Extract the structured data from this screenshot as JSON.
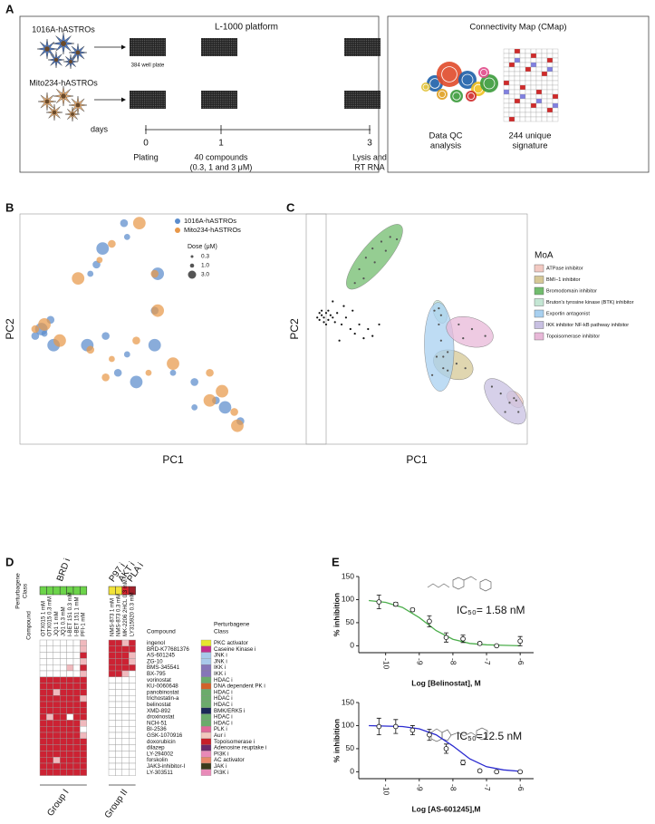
{
  "panel_letters": [
    "A",
    "B",
    "C",
    "D",
    "E"
  ],
  "panel_a": {
    "platform_title": "L-1000 platform",
    "cell_lines": [
      "1016A-hASTROs",
      "Mito234-hASTROs"
    ],
    "plate_label": "384 well plate",
    "days_label": "days",
    "timeline": [
      {
        "day": "0",
        "lines": [
          "Plating"
        ]
      },
      {
        "day": "1",
        "lines": [
          "40 compounds",
          "(0.3, 1 and 3 μM)"
        ]
      },
      {
        "day": "3",
        "lines": [
          "Lysis and",
          "RT RNA"
        ]
      }
    ],
    "cmap_title": "Connectivity Map (CMap)",
    "cmap_steps": [
      [
        "Data QC",
        "analysis"
      ],
      [
        "244 unique",
        "signature"
      ]
    ]
  },
  "panel_d": {
    "class_axis_label": [
      "Perturbagene",
      "Class"
    ],
    "compound_axis_label": "Compound",
    "compound_header": "Compound",
    "class_header": [
      "Perturbagene",
      "Class"
    ],
    "level_colors": [
      "#ffffff",
      "#f0b9bd",
      "#cc2233"
    ],
    "groups": [
      {
        "name": "Group I",
        "class_labels": [
          "BRD i"
        ],
        "columns": [
          {
            "name": "OTX015 1 mM",
            "color": "#6cd44a"
          },
          {
            "name": "OTX015 0.3 mM",
            "color": "#6cd44a"
          },
          {
            "name": "JQ1 1 mM",
            "color": "#6cd44a"
          },
          {
            "name": "JQ1 0.3 mM",
            "color": "#6cd44a"
          },
          {
            "name": "I-BET 151 0.3 mM",
            "color": "#6cd44a"
          },
          {
            "name": "I-BET 151 1 mM",
            "color": "#6cd44a"
          },
          {
            "name": "PFI-1 mM",
            "color": "#6cd44a"
          }
        ],
        "cells": [
          [
            0,
            0,
            0,
            0,
            0,
            0,
            1
          ],
          [
            0,
            0,
            0,
            0,
            0,
            0,
            1
          ],
          [
            0,
            0,
            0,
            0,
            0,
            0,
            2
          ],
          [
            0,
            0,
            0,
            0,
            0,
            0,
            1
          ],
          [
            0,
            0,
            0,
            0,
            1,
            0,
            2
          ],
          [
            0,
            0,
            0,
            0,
            0,
            0,
            1
          ],
          [
            2,
            2,
            2,
            2,
            2,
            2,
            2
          ],
          [
            2,
            2,
            2,
            2,
            2,
            2,
            2
          ],
          [
            2,
            2,
            1,
            2,
            2,
            2,
            2
          ],
          [
            2,
            2,
            2,
            2,
            2,
            2,
            1
          ],
          [
            2,
            2,
            2,
            2,
            2,
            2,
            2
          ],
          [
            2,
            2,
            2,
            2,
            2,
            2,
            2
          ],
          [
            2,
            1,
            2,
            2,
            0,
            2,
            2
          ],
          [
            2,
            2,
            2,
            2,
            2,
            2,
            1
          ],
          [
            2,
            2,
            2,
            2,
            2,
            2,
            0
          ],
          [
            2,
            2,
            2,
            2,
            2,
            2,
            1
          ],
          [
            2,
            2,
            2,
            2,
            2,
            2,
            2
          ],
          [
            2,
            2,
            2,
            2,
            2,
            2,
            2
          ],
          [
            2,
            2,
            2,
            2,
            2,
            2,
            2
          ],
          [
            2,
            2,
            1,
            2,
            2,
            2,
            2
          ],
          [
            2,
            2,
            2,
            2,
            2,
            2,
            2
          ],
          [
            2,
            2,
            2,
            2,
            2,
            2,
            2
          ]
        ]
      },
      {
        "name": "Group II",
        "class_labels": [
          "P97 i",
          "AKT i",
          "PLA i"
        ],
        "columns": [
          {
            "name": "NMS-873 1 mM",
            "color": "#f2e33a"
          },
          {
            "name": "NMS-873 0.3 mM",
            "color": "#f2e33a"
          },
          {
            "name": "MK-2206 2HCL 0.3 mM",
            "color": "#d9262e"
          },
          {
            "name": "LY315920 0.3 mM",
            "color": "#a0202a"
          }
        ],
        "cells": [
          [
            2,
            2,
            1,
            2
          ],
          [
            2,
            2,
            2,
            2
          ],
          [
            2,
            2,
            2,
            1
          ],
          [
            2,
            2,
            2,
            1
          ],
          [
            2,
            2,
            2,
            2
          ],
          [
            2,
            2,
            1,
            0
          ],
          [
            0,
            0,
            0,
            0
          ],
          [
            0,
            0,
            0,
            0
          ],
          [
            0,
            0,
            0,
            0
          ],
          [
            0,
            0,
            0,
            0
          ],
          [
            0,
            0,
            0,
            0
          ],
          [
            0,
            0,
            0,
            0
          ],
          [
            0,
            0,
            0,
            0
          ],
          [
            0,
            0,
            0,
            0
          ],
          [
            0,
            0,
            0,
            0
          ],
          [
            0,
            0,
            0,
            0
          ],
          [
            0,
            0,
            0,
            0
          ],
          [
            0,
            0,
            0,
            0
          ],
          [
            0,
            0,
            0,
            0
          ],
          [
            0,
            0,
            0,
            0
          ],
          [
            0,
            0,
            0,
            0
          ],
          [
            0,
            0,
            0,
            0
          ]
        ]
      }
    ],
    "rows": [
      {
        "compound": "ingenol",
        "class": "PKC activator",
        "color": "#e6e62e"
      },
      {
        "compound": "BRD-K77681376",
        "class": "Caseine Kinase i",
        "color": "#c2308c"
      },
      {
        "compound": "AS-601245",
        "class": "JNK i",
        "color": "#a9c9ea"
      },
      {
        "compound": "ZG-10",
        "class": "JNK i",
        "color": "#a9c9ea"
      },
      {
        "compound": "BMS-345541",
        "class": "IKK i",
        "color": "#8676b8"
      },
      {
        "compound": "BX-795",
        "class": "IKK i",
        "color": "#8676b8"
      },
      {
        "compound": "vorinostat",
        "class": "HDAC i",
        "color": "#6bab6b"
      },
      {
        "compound": "KU-0060648",
        "class": "DNA dependent PK i",
        "color": "#d2622a"
      },
      {
        "compound": "panobinostat",
        "class": "HDAC i",
        "color": "#6bab6b"
      },
      {
        "compound": "trichostatin-a",
        "class": "HDAC i",
        "color": "#6bab6b"
      },
      {
        "compound": "belinostat",
        "class": "HDAC i",
        "color": "#6bab6b"
      },
      {
        "compound": "XMD-892",
        "class": "BMK/ERK5 i",
        "color": "#1c2858"
      },
      {
        "compound": "droxinostat",
        "class": "HDAC i",
        "color": "#6bab6b"
      },
      {
        "compound": "NCH-51",
        "class": "HDAC i",
        "color": "#6bab6b"
      },
      {
        "compound": "BI-2536",
        "class": "PLK i",
        "color": "#df6898"
      },
      {
        "compound": "GSK-1070916",
        "class": "Aur i",
        "color": "#f2c8bf"
      },
      {
        "compound": "doxorubicin",
        "class": "Topoisomerase i",
        "color": "#c61f2a"
      },
      {
        "compound": "dilazep",
        "class": "Adenosine reuptake i",
        "color": "#6a2a6a"
      },
      {
        "compound": "LY-294002",
        "class": "PI3K i",
        "color": "#e88ab8"
      },
      {
        "compound": "forskolin",
        "class": "AC activator",
        "color": "#e8886a"
      },
      {
        "compound": "JAK3-inhibitor-I",
        "class": "JAK i",
        "color": "#3a3a1c"
      },
      {
        "compound": "LY-303511",
        "class": "PI3K i",
        "color": "#e88ab8"
      }
    ]
  },
  "chart_data": [
    {
      "type": "scatter",
      "xlabel": "PC1",
      "ylabel": "PC2",
      "xlim": [
        0,
        100
      ],
      "ylim": [
        0,
        100
      ],
      "legend_loc": "upper right",
      "series": [
        {
          "name": "1016A-hASTROs",
          "color": "#5b8ccc",
          "x": [
            34,
            35,
            27,
            25,
            23,
            45,
            44,
            7,
            10,
            8,
            11,
            5,
            22,
            28,
            35,
            44,
            32,
            38,
            50,
            57,
            67,
            64,
            57,
            72
          ],
          "y": [
            96,
            90,
            85,
            78,
            74,
            74,
            58,
            50,
            54,
            48,
            43,
            47,
            43,
            47,
            39,
            43,
            31,
            27,
            31,
            27,
            16,
            19,
            16,
            10
          ],
          "dose": [
            1,
            0.3,
            3,
            1,
            0.3,
            3,
            1,
            3,
            1,
            0.3,
            3,
            1,
            3,
            1,
            0.3,
            3,
            1,
            3,
            0.3,
            1,
            3,
            1,
            0.3,
            1
          ]
        },
        {
          "name": "Mito234-hASTROs",
          "color": "#e8984a",
          "x": [
            39,
            30,
            26,
            19,
            44,
            45,
            8,
            5,
            13,
            23,
            30,
            38,
            50,
            62,
            42,
            66,
            70,
            71,
            62,
            28
          ],
          "y": [
            96,
            87,
            80,
            72,
            74,
            58,
            52,
            50,
            45,
            41,
            37,
            45,
            35,
            31,
            31,
            23,
            14,
            8,
            19,
            29
          ],
          "dose": [
            3,
            1,
            0.3,
            3,
            1,
            3,
            3,
            1,
            3,
            1,
            0.3,
            1,
            3,
            1,
            0.3,
            3,
            1,
            3,
            3,
            1
          ]
        }
      ],
      "size_legend": {
        "title": "Dose (μM)",
        "values": [
          0.3,
          {
            "value": 1,
            "label": "1.0"
          },
          {
            "value": 3,
            "label": "3.0"
          }
        ]
      }
    },
    {
      "type": "scatter",
      "xlabel": "PC1",
      "ylabel": "PC2",
      "xlim": [
        0,
        100
      ],
      "ylim": [
        0,
        100
      ],
      "legend_title": "MoA",
      "legend_loc": "right",
      "point_color": "#555555",
      "series": [
        {
          "color": "#111111",
          "x": [
            5,
            6,
            7,
            8,
            9,
            10,
            8,
            7,
            9,
            11,
            12,
            6,
            10,
            13,
            14,
            16,
            18,
            20,
            22,
            24,
            26,
            28,
            17,
            21,
            30,
            33,
            12,
            15
          ],
          "y": [
            55,
            54,
            56,
            55,
            57,
            54,
            53,
            58,
            52,
            56,
            55,
            57,
            58,
            53,
            57,
            52,
            55,
            50,
            48,
            52,
            46,
            50,
            60,
            58,
            47,
            52,
            62,
            45
          ]
        },
        {
          "name": "ATPase inhibitor",
          "color": "#f2c9c2",
          "x": [
            94,
            95
          ],
          "y": [
            20,
            19
          ]
        },
        {
          "name": "BMI−1 inhibitor",
          "color": "#d6c896",
          "x": [
            62,
            68,
            72,
            64
          ],
          "y": [
            38,
            35,
            33,
            32
          ]
        },
        {
          "name": "Bromodomain inhibitor",
          "color": "#72bc6e",
          "x": [
            22,
            24,
            27,
            30,
            34,
            38,
            41,
            31,
            26,
            36
          ],
          "y": [
            70,
            76,
            81,
            85,
            88,
            90,
            89,
            79,
            72,
            84
          ]
        },
        {
          "name": "Bruton's tyrosine kinase (BTK) inhibitor",
          "color": "#c4e6d4",
          "x": [
            60,
            61
          ],
          "y": [
            59,
            56
          ]
        },
        {
          "name": "Exportin antagonist",
          "color": "#a8d0f0",
          "x": [
            58,
            60,
            61,
            59,
            62,
            57,
            64
          ],
          "y": [
            58,
            52,
            45,
            38,
            33,
            30,
            40
          ]
        },
        {
          "name": "IKK inhibitor NF-kB pathway inhibitor",
          "color": "#c8c0e2",
          "x": [
            84,
            88,
            92,
            96,
            90
          ],
          "y": [
            25,
            22,
            18,
            14,
            14
          ]
        },
        {
          "name": "Topoisomerase inhibitor",
          "color": "#e8b8d8",
          "x": [
            69,
            75,
            81,
            71
          ],
          "y": [
            52,
            50,
            47,
            46
          ]
        }
      ]
    },
    {
      "type": "line",
      "title": "IC₅₀= 1.58 nM",
      "xlabel": "Log [Belinostat], M",
      "ylabel": "% inhibition",
      "xlim": [
        -10.8,
        -5.6
      ],
      "ylim": [
        -15,
        150
      ],
      "xticks": [
        -10,
        -9,
        -8,
        -7,
        -6
      ],
      "yticks": [
        0,
        50,
        100,
        150
      ],
      "series": [
        {
          "style": "line",
          "color": "#4cae4c",
          "x": [
            -10.5,
            -10,
            -9.5,
            -9,
            -8.5,
            -8,
            -7.5,
            -7,
            -6.5,
            -6
          ],
          "y": [
            98,
            94,
            83,
            61,
            33,
            14,
            5,
            2,
            1,
            0
          ]
        },
        {
          "style": "errorbar",
          "color": "#111111",
          "x": [
            -10.2,
            -9.7,
            -9.2,
            -8.7,
            -8.2,
            -7.7,
            -7.2,
            -6.7,
            -6
          ],
          "y": [
            95,
            90,
            78,
            53,
            18,
            15,
            5,
            0,
            10
          ],
          "err": [
            15,
            4,
            3,
            12,
            10,
            8,
            3,
            2,
            10
          ]
        }
      ]
    },
    {
      "type": "line",
      "title": "IC₅₀=12.5 nM",
      "xlabel": "Log [AS-601245],M",
      "ylabel": "% inhibition",
      "xlim": [
        -10.8,
        -5.6
      ],
      "ylim": [
        -15,
        150
      ],
      "xticks": [
        -10,
        -9,
        -8,
        -7,
        -6
      ],
      "yticks": [
        0,
        50,
        100,
        150
      ],
      "series": [
        {
          "style": "line",
          "color": "#2a2ad0",
          "x": [
            -10.5,
            -10,
            -9.5,
            -9,
            -8.5,
            -8,
            -7.5,
            -7,
            -6.5,
            -6
          ],
          "y": [
            100,
            99,
            98,
            93,
            80,
            56,
            28,
            11,
            4,
            1
          ]
        },
        {
          "style": "errorbar",
          "color": "#111111",
          "x": [
            -10.2,
            -9.7,
            -9.2,
            -8.7,
            -8.2,
            -7.7,
            -7.2,
            -6.7,
            -6
          ],
          "y": [
            98,
            98,
            90,
            80,
            50,
            20,
            2,
            0,
            0
          ],
          "err": [
            18,
            15,
            10,
            12,
            10,
            5,
            2,
            2,
            2
          ]
        }
      ]
    }
  ]
}
